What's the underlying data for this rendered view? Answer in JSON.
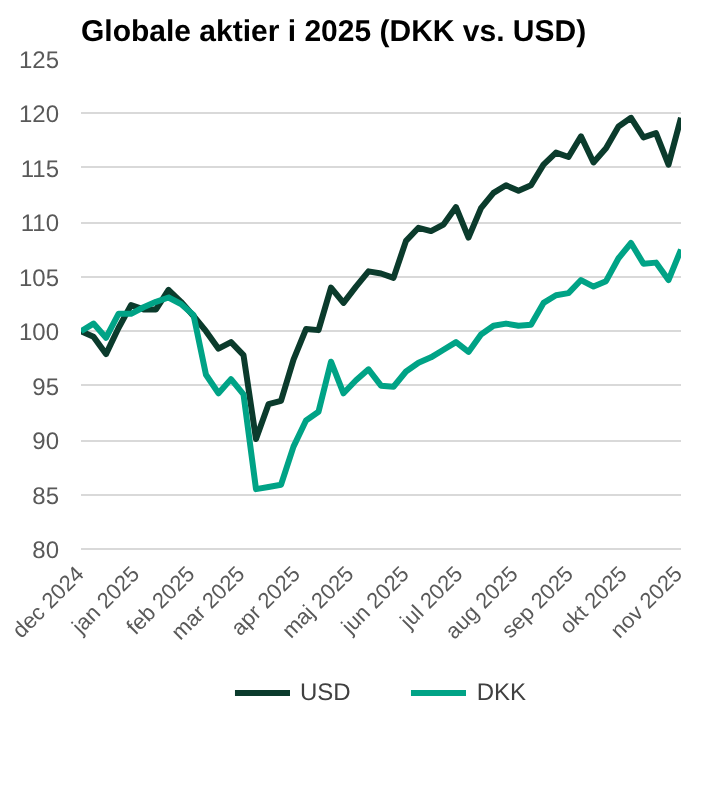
{
  "chart_data": {
    "type": "line",
    "title": "Globale aktier i 2025 (DKK vs. USD)",
    "x": [
      "2024-12-01",
      "2024-12-08",
      "2024-12-15",
      "2024-12-22",
      "2024-12-29",
      "2025-01-05",
      "2025-01-12",
      "2025-01-19",
      "2025-01-26",
      "2025-02-02",
      "2025-02-09",
      "2025-02-16",
      "2025-02-23",
      "2025-03-02",
      "2025-03-09",
      "2025-03-16",
      "2025-03-23",
      "2025-03-30",
      "2025-04-06",
      "2025-04-13",
      "2025-04-20",
      "2025-04-27",
      "2025-05-04",
      "2025-05-11",
      "2025-05-18",
      "2025-05-25",
      "2025-06-01",
      "2025-06-08",
      "2025-06-15",
      "2025-06-22",
      "2025-06-29",
      "2025-07-06",
      "2025-07-13",
      "2025-07-20",
      "2025-07-27",
      "2025-08-03",
      "2025-08-10",
      "2025-08-17",
      "2025-08-24",
      "2025-08-31",
      "2025-09-07",
      "2025-09-14",
      "2025-09-21",
      "2025-09-28",
      "2025-10-05",
      "2025-10-12",
      "2025-10-19",
      "2025-10-26",
      "2025-11-02"
    ],
    "series": [
      {
        "name": "USD",
        "color": "#0b3b2c",
        "values": [
          100,
          99.5,
          97.9,
          100.3,
          102.4,
          102.0,
          102.0,
          103.8,
          102.7,
          101.4,
          100,
          98.4,
          99.0,
          97.8,
          90.1,
          93.3,
          93.6,
          97.4,
          100.2,
          100.1,
          104.0,
          102.6,
          104.1,
          105.5,
          105.3,
          104.9,
          108.3,
          109.5,
          109.2,
          109.8,
          111.4,
          108.6,
          111.3,
          112.7,
          113.4,
          112.9,
          113.4,
          115.3,
          116.4,
          116.0,
          117.9,
          115.5,
          116.8,
          118.8,
          119.6,
          117.8,
          118.2,
          115.3,
          119.6
        ]
      },
      {
        "name": "DKK",
        "color": "#00a386",
        "values": [
          100,
          100.7,
          99.4,
          101.6,
          101.6,
          102.2,
          102.7,
          103.1,
          102.5,
          101.5,
          96.0,
          94.3,
          95.6,
          94.2,
          85.5,
          85.7,
          85.9,
          89.4,
          91.8,
          92.6,
          97.2,
          94.3,
          95.5,
          96.5,
          95.0,
          94.9,
          96.3,
          97.1,
          97.6,
          98.3,
          99.0,
          98.1,
          99.7,
          100.5,
          100.7,
          100.5,
          100.6,
          102.6,
          103.3,
          103.5,
          104.7,
          104.1,
          104.6,
          106.7,
          108.1,
          106.2,
          106.3,
          104.7,
          107.5
        ]
      }
    ],
    "ylim": [
      80,
      125
    ],
    "yticks": [
      80,
      85,
      90,
      95,
      100,
      105,
      110,
      115,
      120,
      125
    ],
    "xticks": [
      {
        "value": "2024-12-01",
        "label": "dec 2024"
      },
      {
        "value": "2025-01-01",
        "label": "jan 2025"
      },
      {
        "value": "2025-02-01",
        "label": "feb 2025"
      },
      {
        "value": "2025-03-01",
        "label": "mar 2025"
      },
      {
        "value": "2025-04-01",
        "label": "apr 2025"
      },
      {
        "value": "2025-05-01",
        "label": "maj 2025"
      },
      {
        "value": "2025-06-01",
        "label": "jun 2025"
      },
      {
        "value": "2025-07-01",
        "label": "jul 2025"
      },
      {
        "value": "2025-08-01",
        "label": "aug 2025"
      },
      {
        "value": "2025-09-01",
        "label": "sep 2025"
      },
      {
        "value": "2025-10-01",
        "label": "okt 2025"
      },
      {
        "value": "2025-11-01",
        "label": "nov 2025"
      }
    ],
    "xlim": [
      "2024-12-01",
      "2025-11-02"
    ],
    "grid": "y",
    "legend": "bottom",
    "marker": "none",
    "line_style": "solid"
  }
}
